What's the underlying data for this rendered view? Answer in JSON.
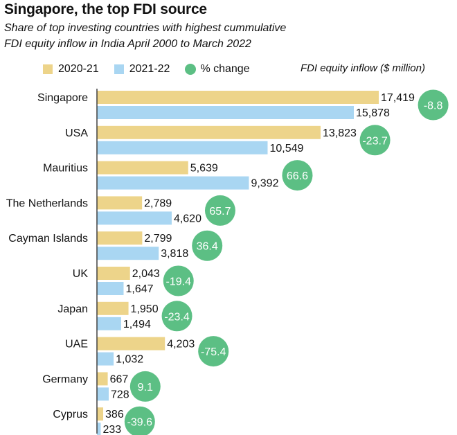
{
  "title": "Singapore, the top FDI source",
  "subtitle_line1": "Share of top investing countries with highest cummulative",
  "subtitle_line2": "FDI equity inflow in India April 2000 to March 2022",
  "legend": {
    "series_a": "2020-21",
    "series_b": "2021-22",
    "change": "% change"
  },
  "unit_note": "FDI equity inflow ($ million)",
  "colors": {
    "series_a": "#edd48a",
    "series_b": "#a9d6f2",
    "change": "#5cbf84",
    "axis": "#333333"
  },
  "chart_data": {
    "type": "bar",
    "orientation": "horizontal",
    "categories": [
      "Singapore",
      "USA",
      "Mauritius",
      "The Netherlands",
      "Cayman Islands",
      "UK",
      "Japan",
      "UAE",
      "Germany",
      "Cyprus"
    ],
    "series": [
      {
        "name": "2020-21",
        "values": [
          17419,
          13823,
          5639,
          2789,
          2799,
          2043,
          1950,
          4203,
          667,
          386
        ]
      },
      {
        "name": "2021-22",
        "values": [
          15878,
          10549,
          9392,
          4620,
          3818,
          1647,
          1494,
          1032,
          728,
          233
        ]
      }
    ],
    "value_labels": {
      "2020-21": [
        "17,419",
        "13,823",
        "5,639",
        "2,789",
        "2,799",
        "2,043",
        "1,950",
        "4,203",
        "667",
        "386"
      ],
      "2021-22": [
        "15,878",
        "10,549",
        "9,392",
        "4,620",
        "3,818",
        "1,647",
        "1,494",
        "1,032",
        "728",
        "233"
      ]
    },
    "pct_change": [
      -8.8,
      -23.7,
      66.6,
      65.7,
      36.4,
      -19.4,
      -23.4,
      -75.4,
      9.1,
      -39.6
    ],
    "pct_change_labels": [
      "-8.8",
      "-23.7",
      "66.6",
      "65.7",
      "36.4",
      "-19.4",
      "-23.4",
      "-75.4",
      "9.1",
      "-39.6"
    ],
    "xlim": [
      0,
      17419
    ],
    "grid": false,
    "legend_position": "top"
  }
}
